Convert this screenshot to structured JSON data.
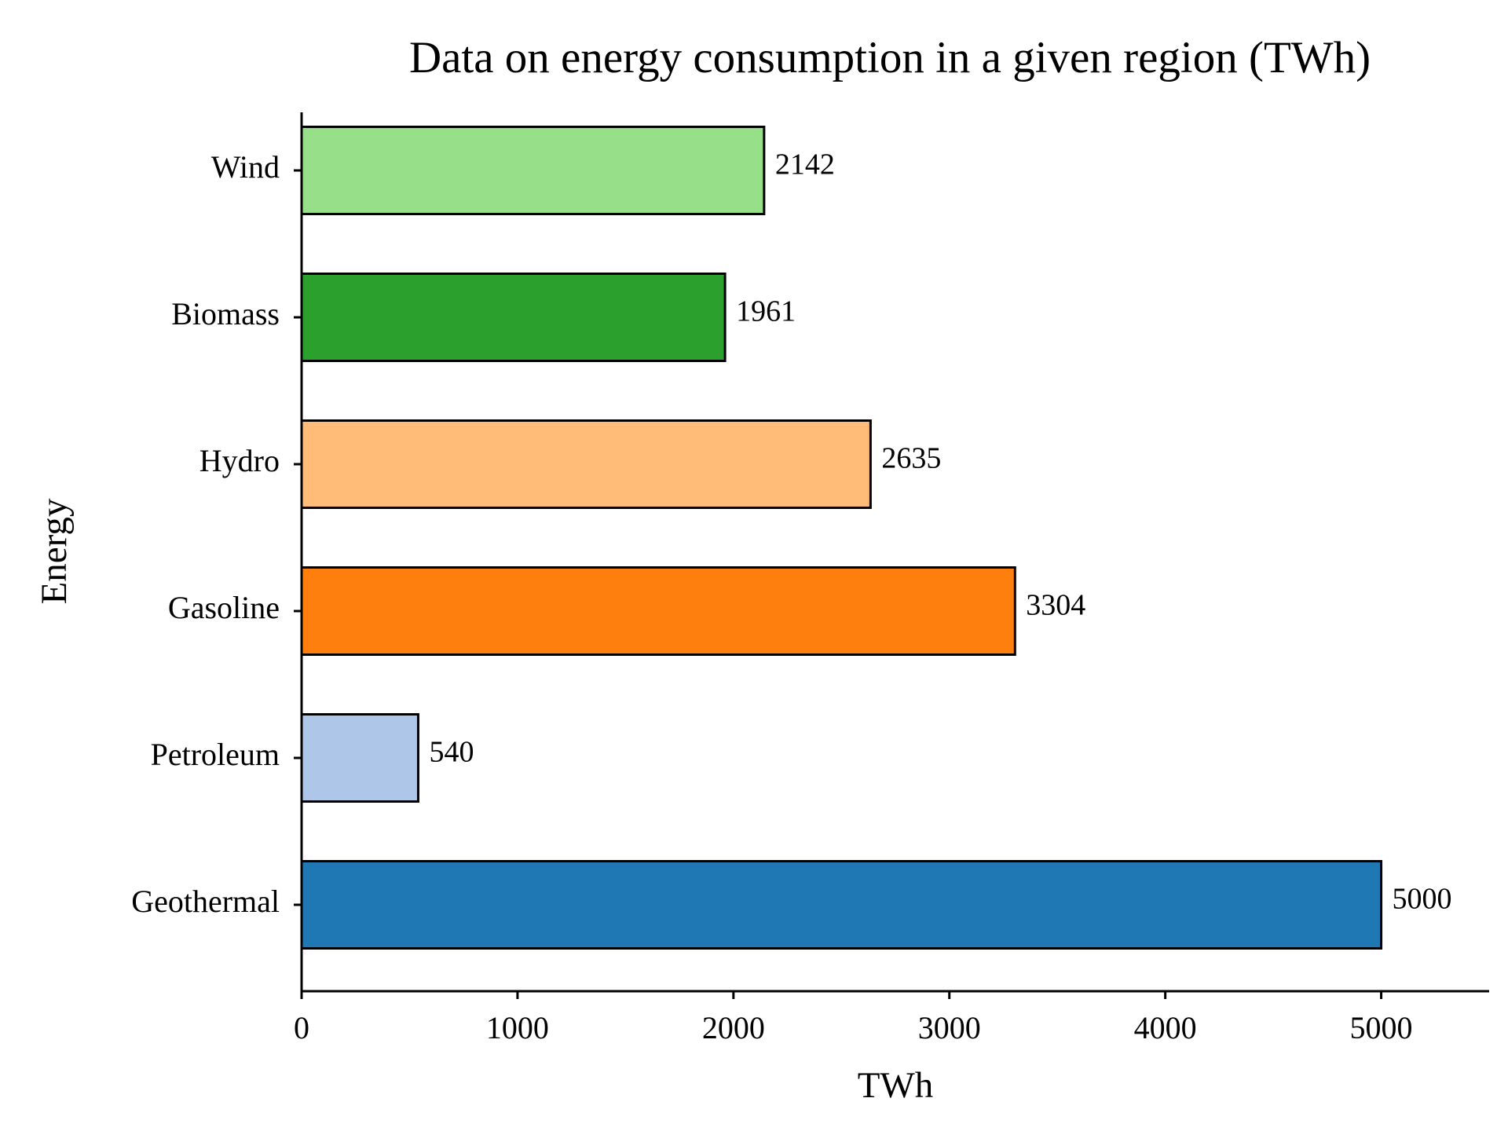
{
  "chart_data": {
    "type": "bar",
    "orientation": "horizontal",
    "title": "Data on energy consumption in a given region (TWh)",
    "xlabel": "TWh",
    "ylabel": "Energy",
    "categories": [
      "Geothermal",
      "Petroleum",
      "Gasoline",
      "Hydro",
      "Biomass",
      "Wind"
    ],
    "values": [
      5000,
      540,
      3304,
      2635,
      1961,
      2142
    ],
    "value_labels": [
      "5000",
      "540",
      "3304",
      "2635",
      "1961",
      "2142"
    ],
    "colors": [
      "#1f77b4",
      "#aec7e8",
      "#ff7f0e",
      "#ffbb78",
      "#2ca02c",
      "#98df8a"
    ],
    "xlim": [
      0,
      5500
    ],
    "xticks": [
      0,
      1000,
      2000,
      3000,
      4000,
      5000
    ],
    "xtick_labels": [
      "0",
      "1000",
      "2000",
      "3000",
      "4000",
      "5000"
    ],
    "grid": false,
    "legend": "none"
  }
}
